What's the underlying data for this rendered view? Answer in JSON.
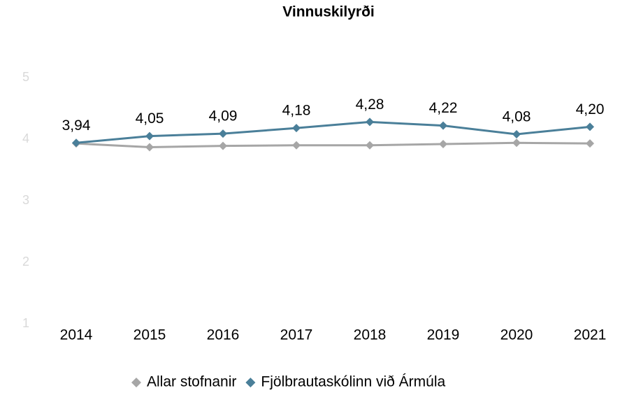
{
  "chart_data": {
    "type": "line",
    "title": "Vinnuskilyrði",
    "categories": [
      "2014",
      "2015",
      "2016",
      "2017",
      "2018",
      "2019",
      "2020",
      "2021"
    ],
    "series": [
      {
        "name": "Allar stofnanir",
        "color": "#a6a6a6",
        "values": [
          3.93,
          3.87,
          3.89,
          3.9,
          3.9,
          3.92,
          3.94,
          3.93
        ]
      },
      {
        "name": "Fjölbrautaskólinn við Ármúla",
        "color": "#4a7f99",
        "values": [
          3.94,
          4.05,
          4.09,
          4.18,
          4.28,
          4.22,
          4.08,
          4.2
        ],
        "value_labels": [
          "3,94",
          "4,05",
          "4,09",
          "4,18",
          "4,28",
          "4,22",
          "4,08",
          "4,20"
        ]
      }
    ],
    "ylim": [
      1,
      5
    ],
    "yticks": [
      1,
      2,
      3,
      4,
      5
    ],
    "grid": false,
    "legend": "bottom"
  }
}
